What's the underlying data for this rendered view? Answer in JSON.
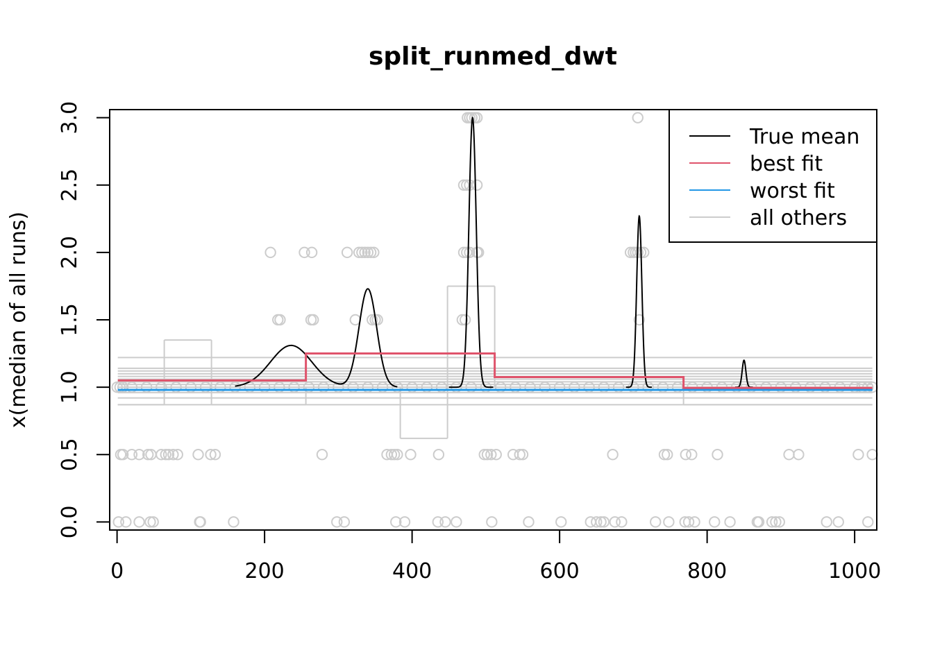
{
  "chart_data": {
    "type": "line",
    "title": "split_runmed_dwt",
    "xlabel": "",
    "ylabel": "x(median of all runs)",
    "xlim": [
      -10,
      1030
    ],
    "ylim": [
      -0.06,
      3.06
    ],
    "x_ticks": [
      0,
      200,
      400,
      600,
      800,
      1000
    ],
    "y_ticks": [
      0.0,
      0.5,
      1.0,
      1.5,
      2.0,
      2.5,
      3.0
    ],
    "x_tick_labels": [
      "0",
      "200",
      "400",
      "600",
      "800",
      "1000"
    ],
    "y_tick_labels": [
      "0.0",
      "0.5",
      "1.0",
      "1.5",
      "2.0",
      "2.5",
      "3.0"
    ],
    "legend": {
      "position": "top-right",
      "entries": [
        {
          "label": "True mean",
          "color": "#000000"
        },
        {
          "label": "best fit",
          "color": "#DF536B"
        },
        {
          "label": "worst fit",
          "color": "#2297E6"
        },
        {
          "label": "all others",
          "color": "#CCCCCC"
        }
      ]
    },
    "series": [
      {
        "name": "True mean",
        "color": "#000000",
        "baseline": 1.0,
        "bumps": [
          {
            "center": 236,
            "height": 0.31,
            "sigma": 28,
            "span": [
              160,
              310
            ]
          },
          {
            "center": 340,
            "height": 0.73,
            "sigma": 12,
            "span": [
              300,
              380
            ]
          },
          {
            "center": 482,
            "height": 2.0,
            "sigma": 5,
            "span": [
              450,
              510
            ]
          },
          {
            "center": 708,
            "height": 1.27,
            "sigma": 3.5,
            "span": [
              690,
              725
            ]
          },
          {
            "center": 850,
            "height": 0.2,
            "sigma": 2.5,
            "span": [
              838,
              862
            ]
          }
        ]
      },
      {
        "name": "best fit",
        "color": "#DF536B",
        "steps": [
          {
            "x0": 1,
            "x1": 256,
            "y": 1.05
          },
          {
            "x0": 256,
            "x1": 512,
            "y": 1.25
          },
          {
            "x0": 512,
            "x1": 768,
            "y": 1.075
          },
          {
            "x0": 768,
            "x1": 1024,
            "y": 0.995
          }
        ]
      },
      {
        "name": "worst fit",
        "color": "#2297E6",
        "steps": [
          {
            "x0": 1,
            "x1": 1024,
            "y": 0.98
          }
        ]
      }
    ],
    "all_others": {
      "color": "#CCCCCC",
      "flat_levels": [
        0.87,
        0.92,
        0.96,
        0.98,
        1.0,
        1.02,
        1.04,
        1.06,
        1.08,
        1.1,
        1.12,
        1.14,
        1.22
      ],
      "steps": [
        {
          "x0": 1,
          "x1": 64,
          "y": 0.87
        },
        {
          "x0": 64,
          "x1": 128,
          "y": 1.35
        },
        {
          "x0": 128,
          "x1": 256,
          "y": 0.87
        },
        {
          "x0": 384,
          "x1": 448,
          "y": 0.62
        },
        {
          "x0": 448,
          "x1": 512,
          "y": 1.75
        },
        {
          "x0": 768,
          "x1": 1024,
          "y": 0.87
        }
      ]
    },
    "points": {
      "color": "#CCCCCC",
      "y0": [
        2,
        12,
        30,
        45,
        49,
        112,
        113,
        158,
        298,
        308,
        378,
        390,
        435,
        445,
        460,
        508,
        558,
        602,
        642,
        650,
        656,
        660,
        675,
        684,
        730,
        748,
        770,
        775,
        783,
        810,
        831,
        868,
        870,
        888,
        893,
        898,
        962,
        978,
        1018
      ],
      "y05": [
        5,
        8,
        20,
        30,
        42,
        46,
        60,
        66,
        70,
        76,
        82,
        110,
        127,
        133,
        278,
        366,
        372,
        376,
        380,
        398,
        436,
        498,
        502,
        507,
        514,
        537,
        546,
        550,
        672,
        742,
        746,
        771,
        779,
        814,
        911,
        924,
        1005,
        1024
      ],
      "y1": [
        0,
        4,
        8,
        20,
        40,
        60,
        80,
        100,
        120,
        140,
        160,
        180,
        200,
        220,
        240,
        260,
        280,
        300,
        320,
        340,
        360,
        380,
        400,
        420,
        440,
        460,
        480,
        500,
        520,
        540,
        560,
        580,
        600,
        620,
        640,
        660,
        680,
        700,
        720,
        740,
        760,
        780,
        800,
        820,
        840,
        860,
        880,
        900,
        920,
        940,
        960,
        980,
        1000,
        1010,
        1018,
        1024
      ],
      "y15": [
        218,
        221,
        263,
        266,
        323,
        346,
        350,
        353,
        468,
        472,
        708
      ],
      "y2": [
        208,
        254,
        264,
        312,
        328,
        332,
        336,
        340,
        344,
        348,
        470,
        474,
        478,
        488,
        490,
        696,
        700,
        703,
        706,
        710,
        714
      ],
      "y25": [
        470,
        474,
        478,
        488
      ],
      "y3": [
        475,
        478,
        481,
        485,
        488,
        706
      ]
    }
  }
}
